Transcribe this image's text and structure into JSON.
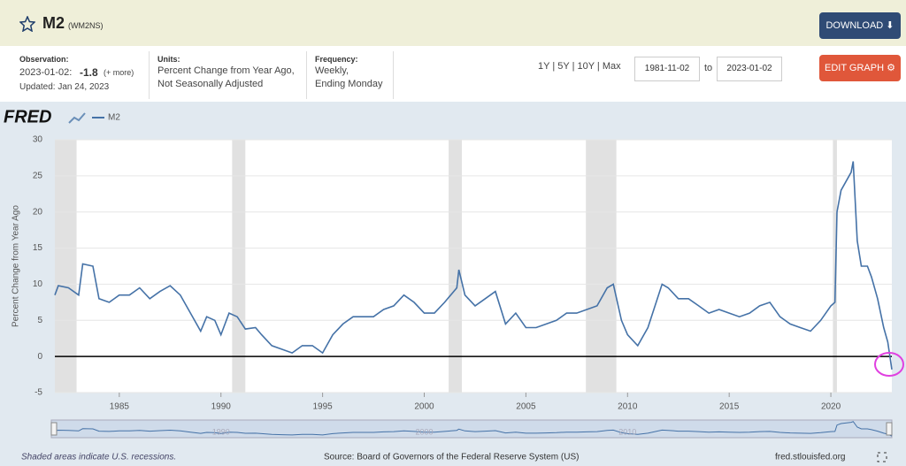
{
  "header": {
    "title": "M2",
    "series_id": "(WM2NS)",
    "download": "DOWNLOAD"
  },
  "info": {
    "observation_label": "Observation:",
    "observation_date": "2023-01-02:",
    "observation_value": -1.8,
    "more": "(+ more)",
    "updated": "Updated: Jan 24, 2023",
    "units_label": "Units:",
    "units_line1": "Percent Change from Year Ago,",
    "units_line2": "Not Seasonally Adjusted",
    "frequency_label": "Frequency:",
    "frequency_line1": "Weekly,",
    "frequency_line2": "Ending Monday"
  },
  "controls": {
    "ranges": [
      "1Y",
      "5Y",
      "10Y",
      "Max"
    ],
    "start_date": "1981-11-02",
    "to": "to",
    "end_date": "2023-01-02",
    "edit_graph": "EDIT GRAPH"
  },
  "logo": "FRED",
  "chart_data": {
    "type": "line",
    "y_label": "Percent Change from Year Ago",
    "x": [
      1981.83,
      1982.0,
      1982.5,
      1983.0,
      1983.2,
      1983.7,
      1984.0,
      1984.5,
      1985.0,
      1985.5,
      1986.0,
      1986.5,
      1987.0,
      1987.5,
      1988.0,
      1988.5,
      1989.0,
      1989.3,
      1989.7,
      1990.0,
      1990.4,
      1990.8,
      1991.2,
      1991.7,
      1992.0,
      1992.5,
      1993.0,
      1993.5,
      1994.0,
      1994.5,
      1995.0,
      1995.5,
      1996.0,
      1996.5,
      1997.0,
      1997.5,
      1998.0,
      1998.5,
      1999.0,
      1999.5,
      2000.0,
      2000.5,
      2001.0,
      2001.6,
      2001.7,
      2002.0,
      2002.5,
      2003.0,
      2003.5,
      2004.0,
      2004.5,
      2005.0,
      2005.5,
      2006.0,
      2006.5,
      2007.0,
      2007.5,
      2008.0,
      2008.5,
      2009.0,
      2009.3,
      2009.7,
      2010.0,
      2010.5,
      2011.0,
      2011.7,
      2012.0,
      2012.5,
      2013.0,
      2013.5,
      2014.0,
      2014.5,
      2015.0,
      2015.5,
      2016.0,
      2016.5,
      2017.0,
      2017.5,
      2018.0,
      2018.5,
      2019.0,
      2019.5,
      2020.0,
      2020.2,
      2020.3,
      2020.5,
      2021.0,
      2021.1,
      2021.3,
      2021.5,
      2021.8,
      2022.0,
      2022.3,
      2022.6,
      2022.8,
      2023.0
    ],
    "series": [
      {
        "name": "M2",
        "color": "#4572a7",
        "values": [
          8.5,
          9.8,
          9.5,
          8.5,
          12.8,
          12.5,
          8,
          7.5,
          8.5,
          8.5,
          9.5,
          8,
          9,
          9.8,
          8.5,
          6,
          3.5,
          5.5,
          5,
          3,
          6,
          5.5,
          3.8,
          4,
          3,
          1.5,
          1,
          0.5,
          1.5,
          1.5,
          0.5,
          3,
          4.5,
          5.5,
          5.5,
          5.5,
          6.5,
          7,
          8.5,
          7.5,
          6,
          6,
          7.5,
          9.5,
          12,
          8.5,
          7,
          8,
          9,
          4.5,
          6,
          4,
          4,
          4.5,
          5,
          6,
          6,
          6.5,
          7,
          9.5,
          10,
          5,
          3,
          1.5,
          4,
          10,
          9.5,
          8,
          8,
          7,
          6,
          6.5,
          6,
          5.5,
          6,
          7,
          7.5,
          5.5,
          4.5,
          4,
          3.5,
          5,
          7,
          7.5,
          20,
          23,
          25.5,
          27,
          16,
          12.5,
          12.5,
          11,
          8,
          4,
          2,
          -1.8
        ]
      }
    ],
    "recessions": [
      [
        1981.83,
        1982.9
      ],
      [
        1990.55,
        1991.2
      ],
      [
        2001.2,
        2001.85
      ],
      [
        2007.95,
        2009.45
      ],
      [
        2020.1,
        2020.3
      ]
    ],
    "xlim": [
      1981.83,
      2023.0
    ],
    "xticks": [
      1985,
      1990,
      1995,
      2000,
      2005,
      2010,
      2015,
      2020
    ],
    "ylim": [
      -5,
      30
    ],
    "yticks": [
      -5,
      0,
      5,
      10,
      15,
      20,
      25,
      30
    ],
    "grid": true,
    "navigator_labels": [
      1990,
      2000,
      2010
    ]
  },
  "footer": {
    "note": "Shaded areas indicate U.S. recessions.",
    "source": "Source: Board of Governors of the Federal Reserve System (US)",
    "site": "fred.stlouisfed.org"
  }
}
